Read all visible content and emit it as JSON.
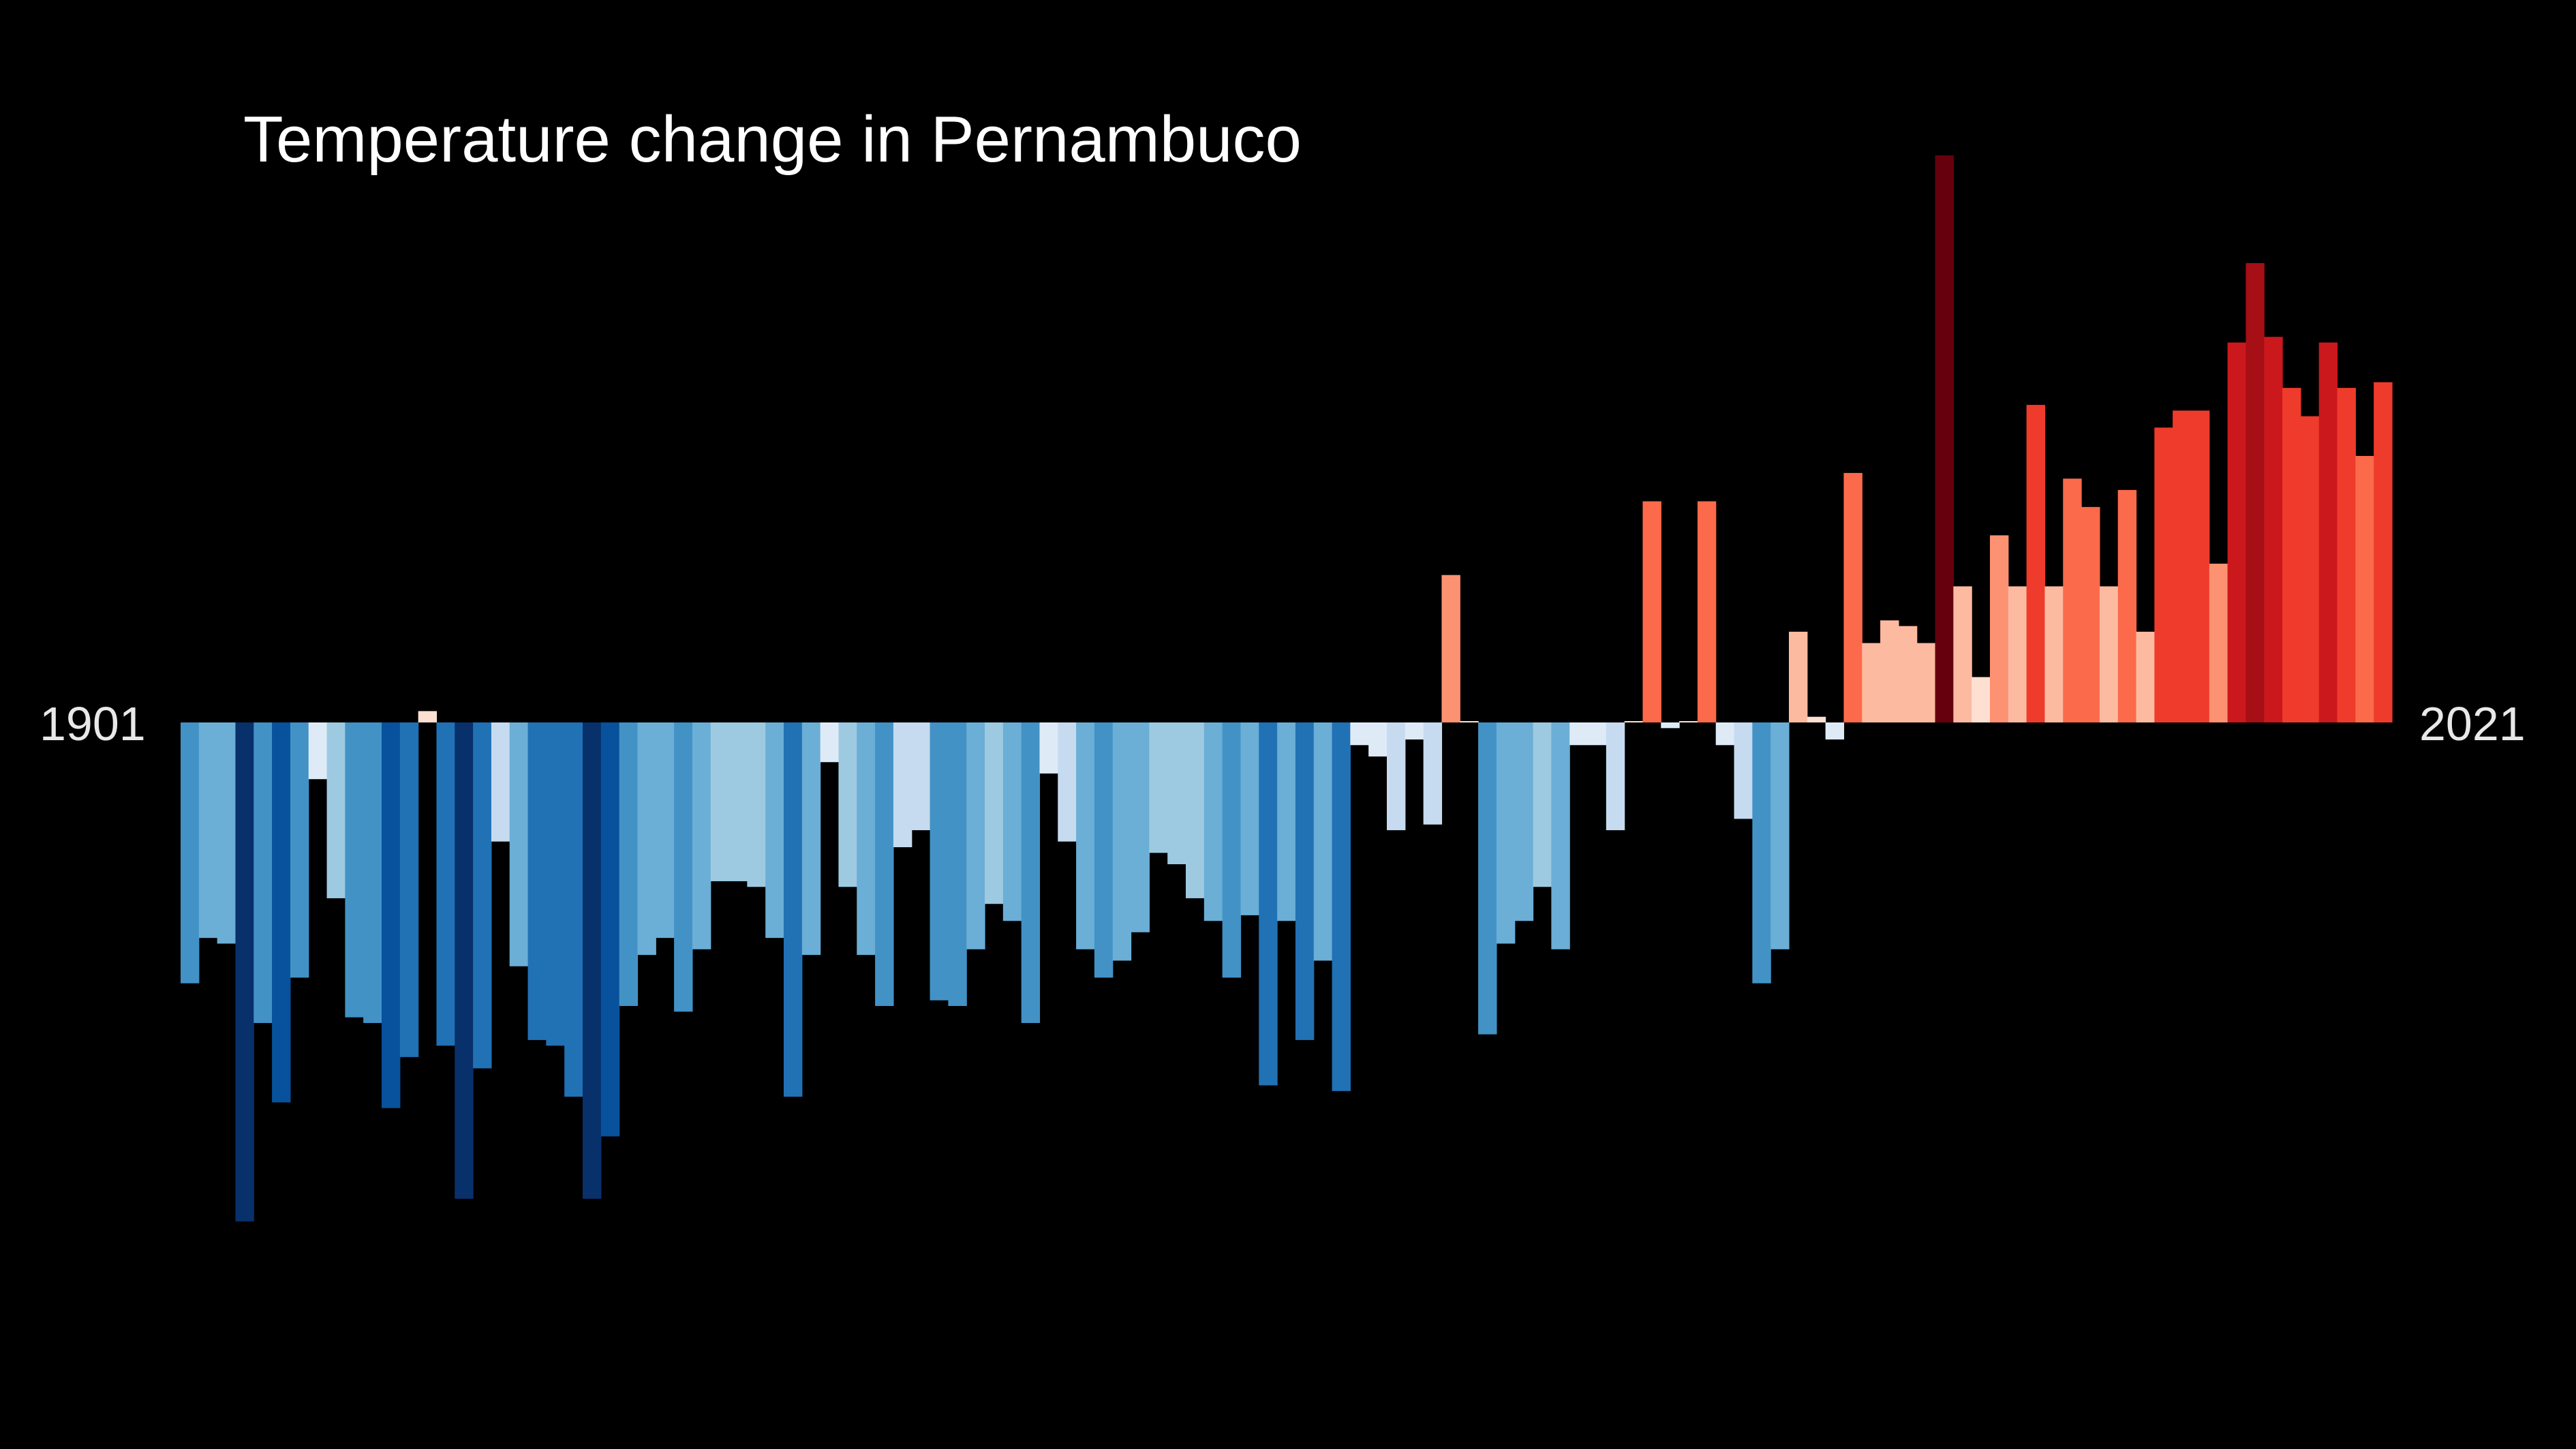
{
  "chart_data": {
    "type": "bar",
    "title": "Temperature change in Pernambuco",
    "start_year_label": "1901",
    "end_year_label": "2021",
    "background": "#000000",
    "color_scale": {
      "cold_colors": [
        "#08306b",
        "#08519c",
        "#2171b5",
        "#4292c6",
        "#6baed6",
        "#9ecae1",
        "#c6dbef",
        "#deebf7"
      ],
      "warm_colors": [
        "#fee0d2",
        "#fcbba1",
        "#fc9272",
        "#fb6a4a",
        "#ef3b2c",
        "#cb181d",
        "#a50f15",
        "#67000d"
      ]
    },
    "ylim": [
      -0.86,
      1.0
    ],
    "categories": [
      "1901",
      "1902",
      "1903",
      "1904",
      "1905",
      "1906",
      "1907",
      "1908",
      "1909",
      "1910",
      "1911",
      "1912",
      "1913",
      "1914",
      "1915",
      "1916",
      "1917",
      "1918",
      "1919",
      "1920",
      "1921",
      "1922",
      "1923",
      "1924",
      "1925",
      "1926",
      "1927",
      "1928",
      "1929",
      "1930",
      "1931",
      "1932",
      "1933",
      "1934",
      "1935",
      "1936",
      "1937",
      "1938",
      "1939",
      "1940",
      "1941",
      "1942",
      "1943",
      "1944",
      "1945",
      "1946",
      "1947",
      "1948",
      "1949",
      "1950",
      "1951",
      "1952",
      "1953",
      "1954",
      "1955",
      "1956",
      "1957",
      "1958",
      "1959",
      "1960",
      "1961",
      "1962",
      "1963",
      "1964",
      "1965",
      "1966",
      "1967",
      "1968",
      "1969",
      "1970",
      "1971",
      "1972",
      "1973",
      "1974",
      "1975",
      "1976",
      "1977",
      "1978",
      "1979",
      "1980",
      "1981",
      "1982",
      "1983",
      "1984",
      "1985",
      "1986",
      "1987",
      "1988",
      "1989",
      "1990",
      "1991",
      "1992",
      "1993",
      "1994",
      "1995",
      "1996",
      "1997",
      "1998",
      "1999",
      "2000",
      "2001",
      "2002",
      "2003",
      "2004",
      "2005",
      "2006",
      "2007",
      "2008",
      "2009",
      "2010",
      "2011",
      "2012",
      "2013",
      "2014",
      "2015",
      "2016",
      "2017",
      "2018",
      "2019",
      "2020",
      "2021"
    ],
    "values": [
      -0.46,
      -0.38,
      -0.39,
      -0.88,
      -0.53,
      -0.67,
      -0.45,
      -0.1,
      -0.31,
      -0.52,
      -0.53,
      -0.68,
      -0.59,
      0.02,
      -0.57,
      -0.84,
      -0.61,
      -0.21,
      -0.43,
      -0.56,
      -0.57,
      -0.66,
      -0.84,
      -0.73,
      -0.5,
      -0.41,
      -0.38,
      -0.51,
      -0.4,
      -0.28,
      -0.28,
      -0.29,
      -0.38,
      -0.66,
      -0.41,
      -0.07,
      -0.29,
      -0.41,
      -0.5,
      -0.22,
      -0.19,
      -0.49,
      -0.5,
      -0.4,
      -0.32,
      -0.35,
      -0.53,
      -0.09,
      -0.21,
      -0.4,
      -0.45,
      -0.42,
      -0.37,
      -0.23,
      -0.25,
      -0.31,
      -0.35,
      -0.45,
      -0.34,
      -0.64,
      -0.35,
      -0.56,
      -0.42,
      -0.65,
      -0.04,
      -0.06,
      -0.19,
      -0.03,
      -0.18,
      0.26,
      0.0,
      -0.55,
      -0.39,
      -0.35,
      -0.29,
      -0.4,
      -0.04,
      -0.04,
      -0.19,
      0.0,
      0.39,
      -0.01,
      0.0,
      0.39,
      -0.04,
      -0.17,
      -0.46,
      -0.4,
      0.16,
      0.01,
      -0.03,
      0.44,
      0.14,
      0.18,
      0.17,
      0.14,
      1.0,
      0.24,
      0.08,
      0.33,
      0.24,
      0.56,
      0.24,
      0.43,
      0.38,
      0.24,
      0.41,
      0.16,
      0.52,
      0.55,
      0.55,
      0.28,
      0.67,
      0.81,
      0.68,
      0.59,
      0.54,
      0.67,
      0.59,
      0.47,
      0.6
    ]
  }
}
